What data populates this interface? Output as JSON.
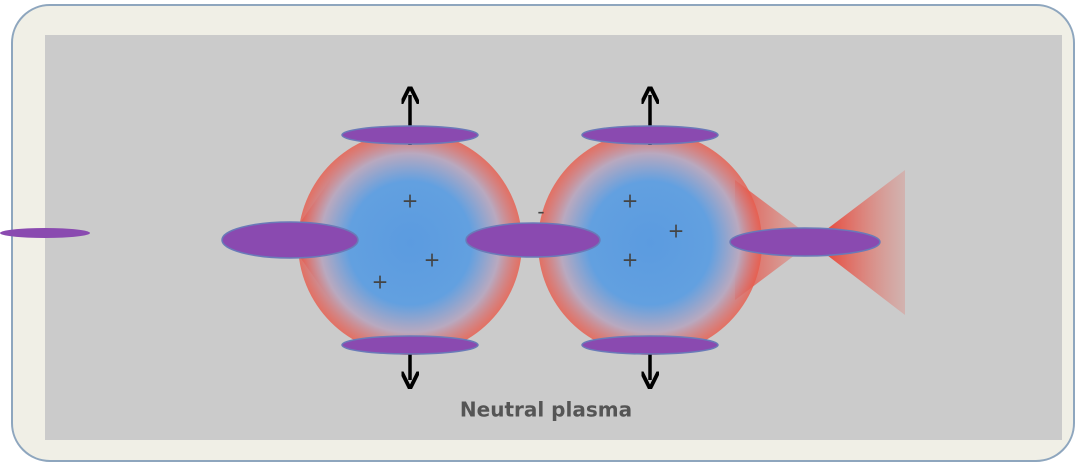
{
  "charges": [
    "+",
    "+",
    "+",
    "+",
    "+",
    "+",
    "-"
  ],
  "caption": "Neutral plasma"
}
